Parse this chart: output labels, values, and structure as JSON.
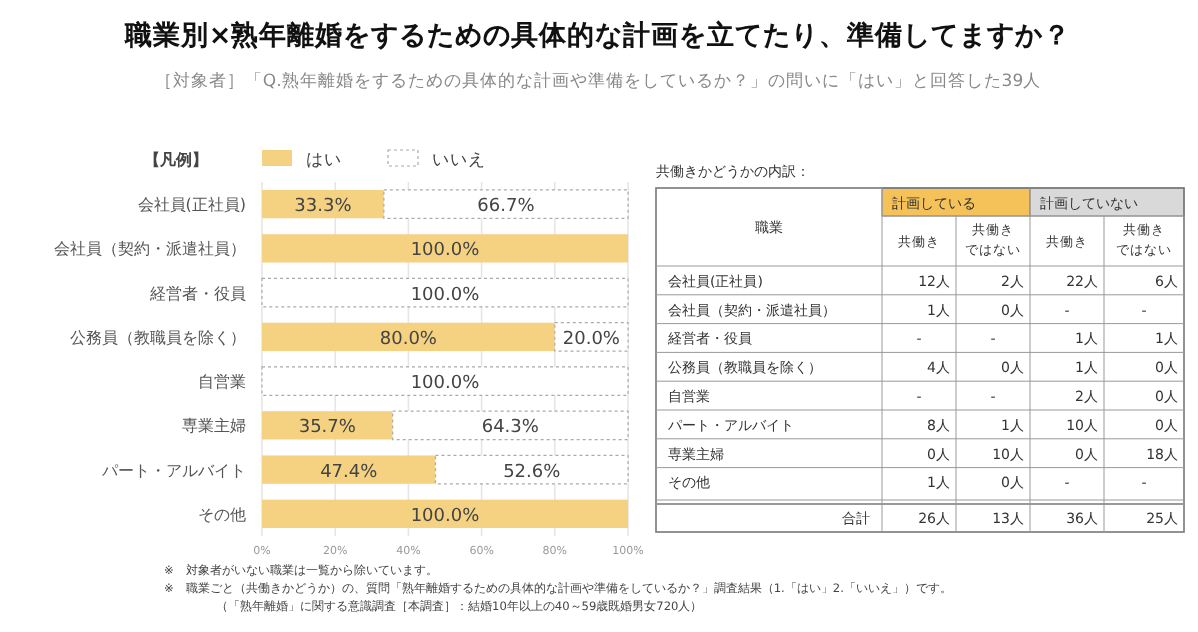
{
  "chart_data": [
    {
      "type": "bar",
      "orientation": "horizontal",
      "stacked": true,
      "title": "職業別×熟年離婚をするための具体的な計画を立てたり、準備してますか？",
      "subtitle": "［対象者］「Q.熟年離婚をするための具体的な計画や準備をしているか？」の問いに「はい」と回答した39人",
      "legend_title": "【凡例】",
      "legend": "top",
      "grid": "x",
      "categories": [
        "会社員(正社員)",
        "会社員（契約・派遣社員）",
        "経営者・役員",
        "公務員（教職員を除く）",
        "自営業",
        "専業主婦",
        "パート・アルバイト",
        "その他"
      ],
      "series": [
        {
          "name": "はい",
          "color": "#f5d282",
          "values": [
            33.3,
            100,
            0,
            80,
            0,
            35.7,
            47.4,
            100
          ],
          "value_labels": [
            "33.3%",
            "100.0%",
            null,
            "80.0%",
            null,
            "35.7%",
            "47.4%",
            "100.0%"
          ]
        },
        {
          "name": "いいえ",
          "color": "#ffffff",
          "values": [
            66.7,
            0,
            100,
            20,
            100,
            64.3,
            52.6,
            0
          ],
          "value_labels": [
            "66.7%",
            null,
            "100.0%",
            "20.0%",
            "100.0%",
            "64.3%",
            "52.6%",
            null
          ]
        }
      ],
      "xlim": [
        0,
        100
      ],
      "xticks": [
        {
          "value": 0,
          "label": "0%"
        },
        {
          "value": 20,
          "label": "20%"
        },
        {
          "value": 40,
          "label": "40%"
        },
        {
          "value": 60,
          "label": "60%"
        },
        {
          "value": 80,
          "label": "80%"
        },
        {
          "value": 100,
          "label": "100%"
        }
      ],
      "annotations": [
        "※　対象者がいない職業は一覧から除いています。",
        "※　職業ごと（共働きかどうか）の、質問「熟年離婚するための具体的な計画や準備をしているか？」調査結果（1.「はい」2.「いいえ」）です。",
        "（「熟年離婚」に関する意識調査［本調査］：結婚10年以上の40～59歳既婚男女720人）"
      ]
    },
    {
      "type": "other",
      "title": "共働きかどうかの内訳：",
      "xlabel": "職業",
      "annotations": [
        "計画している",
        "計画していない"
      ],
      "categories": [
        "共働き",
        "共働きではない",
        "共働き",
        "共働きではない"
      ],
      "y_categories": [
        "会社員(正社員)",
        "会社員（契約・派遣社員）",
        "経営者・役員",
        "公務員（教職員を除く）",
        "自営業",
        "パート・アルバイト",
        "専業主婦",
        "その他",
        "合計"
      ],
      "cell_labels": [
        [
          "12人",
          "2人",
          "22人",
          "6人"
        ],
        [
          "1人",
          "0人",
          "-",
          "-"
        ],
        [
          "-",
          "-",
          "1人",
          "1人"
        ],
        [
          "4人",
          "0人",
          "1人",
          "0人"
        ],
        [
          "-",
          "-",
          "2人",
          "0人"
        ],
        [
          "8人",
          "1人",
          "10人",
          "0人"
        ],
        [
          "0人",
          "10人",
          "0人",
          "18人"
        ],
        [
          "1人",
          "0人",
          "-",
          "-"
        ],
        [
          "26人",
          "13人",
          "36人",
          "25人"
        ]
      ]
    }
  ]
}
